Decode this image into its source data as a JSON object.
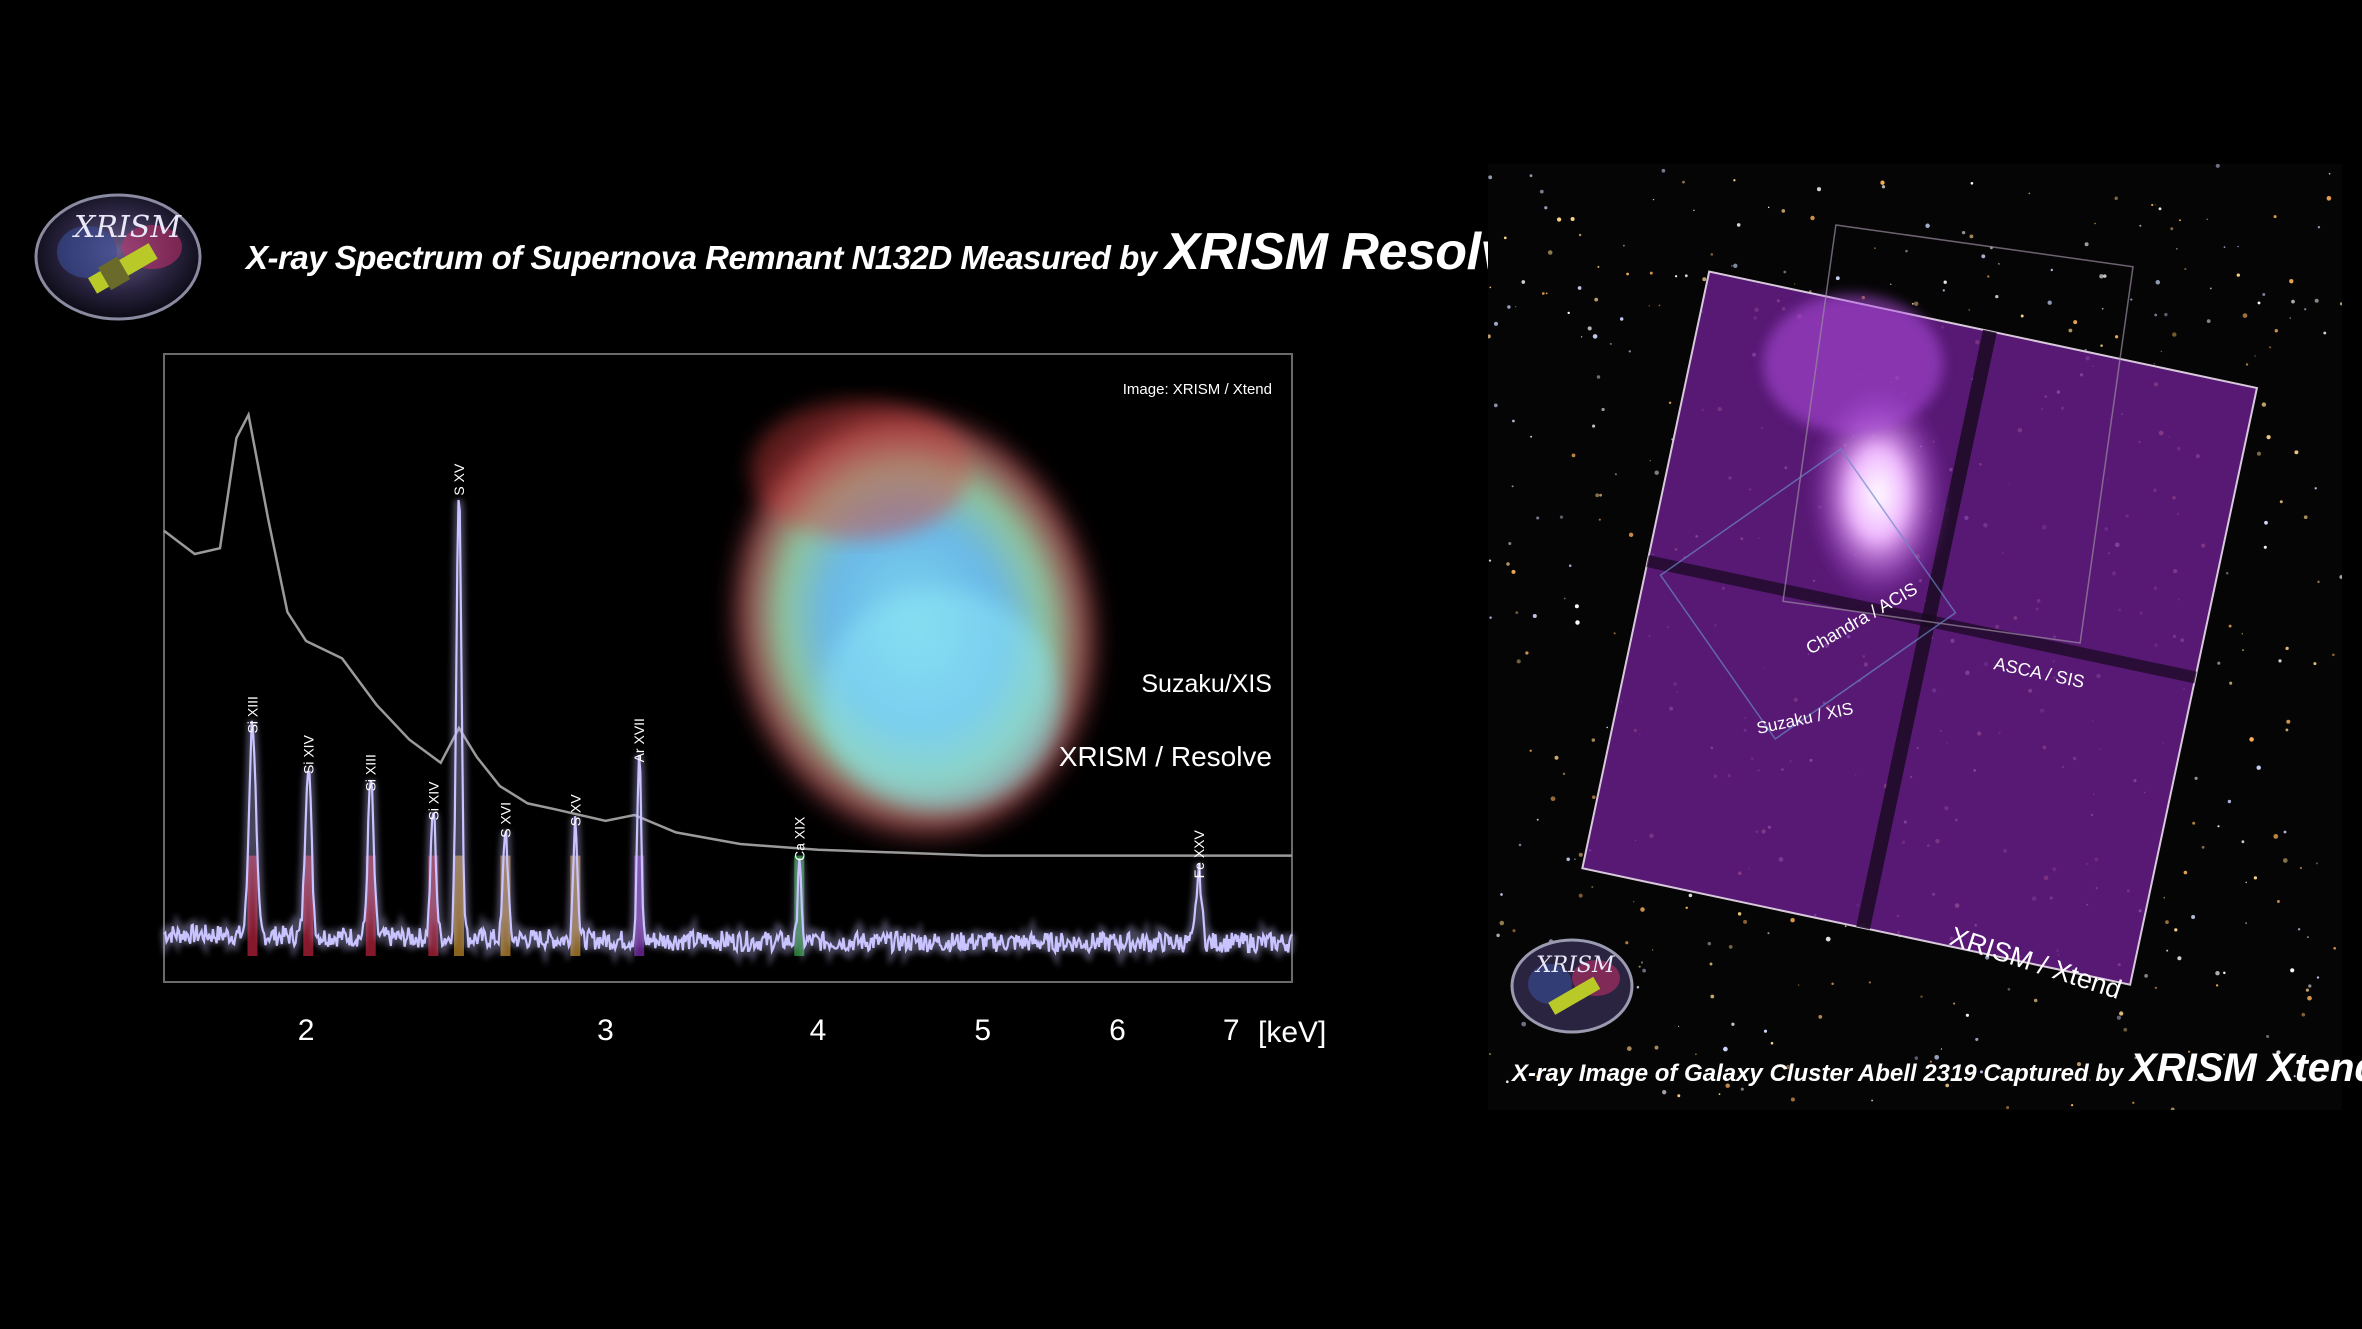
{
  "left_title": {
    "text": "X-ray Spectrum of Supernova Remnant N132D Measured by ",
    "emphasis": "XRISM Resolve"
  },
  "logo_text": "XRISM",
  "image_credit": "Image: XRISM / Xtend",
  "right_title": {
    "text": "X-ray Image of Galaxy Cluster Abell 2319 Captured by ",
    "emphasis": "XRISM Xtend"
  },
  "right_image_labels": {
    "xtend": "XRISM / Xtend",
    "asca": "ASCA / SIS",
    "suzaku": "Suzaku / XIS",
    "chandra": "Chandra / ACIS"
  },
  "colors": {
    "resolve_line": "#c9c3ff",
    "suzaku_line": "#9a9a9a",
    "purple_image": "#9b2fc9",
    "si_bar": "#b3203a",
    "s_bar": "#b8862a",
    "ar_bar": "#7a2aa8",
    "ca_bar": "#2a9a3a",
    "fe_bar": "#5a5a5a"
  },
  "chart_data": {
    "type": "line",
    "xlabel": "[keV]",
    "x_scale": "log",
    "xlim": [
      1.65,
      7.6
    ],
    "x_ticks": [
      2,
      3,
      4,
      5,
      6,
      7
    ],
    "series": [
      {
        "name": "Suzaku/XIS",
        "x": [
          1.65,
          1.72,
          1.78,
          1.82,
          1.85,
          1.9,
          1.95,
          2.0,
          2.1,
          2.2,
          2.3,
          2.4,
          2.46,
          2.52,
          2.6,
          2.7,
          2.8,
          3.0,
          3.12,
          3.3,
          3.6,
          4.0,
          5.0,
          6.0,
          7.0,
          7.6
        ],
        "y": [
          0.74,
          0.7,
          0.71,
          0.9,
          0.94,
          0.76,
          0.6,
          0.55,
          0.52,
          0.44,
          0.38,
          0.34,
          0.4,
          0.35,
          0.3,
          0.27,
          0.26,
          0.24,
          0.25,
          0.22,
          0.2,
          0.19,
          0.18,
          0.18,
          0.18,
          0.18
        ]
      },
      {
        "name": "XRISM / Resolve",
        "lines": [
          {
            "label": "Si XIII",
            "x": 1.86,
            "y": 0.37,
            "bar": "si_bar"
          },
          {
            "label": "Si XIV",
            "x": 2.006,
            "y": 0.3,
            "bar": "si_bar"
          },
          {
            "label": "Si XIII",
            "x": 2.183,
            "y": 0.27,
            "bar": "si_bar"
          },
          {
            "label": "Si XIV",
            "x": 2.376,
            "y": 0.22,
            "bar": "si_bar"
          },
          {
            "label": "S XV",
            "x": 2.46,
            "y": 0.78,
            "bar": "s_bar"
          },
          {
            "label": "S XVI",
            "x": 2.62,
            "y": 0.19,
            "bar": "s_bar"
          },
          {
            "label": "S XV",
            "x": 2.88,
            "y": 0.21,
            "bar": "s_bar"
          },
          {
            "label": "Ar XVII",
            "x": 3.14,
            "y": 0.32,
            "bar": "ar_bar"
          },
          {
            "label": "Ca XIX",
            "x": 3.9,
            "y": 0.15,
            "bar": "ca_bar"
          },
          {
            "label": "Fe XXV",
            "x": 6.7,
            "y": 0.12,
            "bar": "fe_bar"
          }
        ]
      }
    ]
  }
}
